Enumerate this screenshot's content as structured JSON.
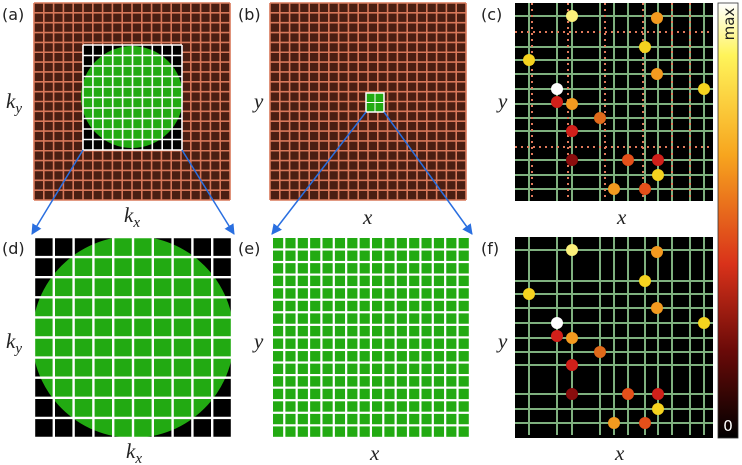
{
  "panels": [
    {
      "label": "(a)",
      "y_label": {
        "text": "k",
        "sub": "y"
      },
      "x_label": {
        "text": "k",
        "sub": "x"
      }
    },
    {
      "label": "(b)",
      "y_label": {
        "text": "y"
      },
      "x_label": {
        "text": "x"
      }
    },
    {
      "label": "(c)",
      "y_label": {
        "text": "y"
      },
      "x_label": {
        "text": "x"
      }
    },
    {
      "label": "(d)",
      "y_label": {
        "text": "k",
        "sub": "y"
      },
      "x_label": {
        "text": "k",
        "sub": "x"
      }
    },
    {
      "label": "(e)",
      "y_label": {
        "text": "y"
      },
      "x_label": {
        "text": "x"
      }
    },
    {
      "label": "(f)",
      "y_label": {
        "text": "y"
      },
      "x_label": {
        "text": "x"
      }
    }
  ],
  "colorbar": {
    "max_label": "max",
    "min_label": "0"
  }
}
